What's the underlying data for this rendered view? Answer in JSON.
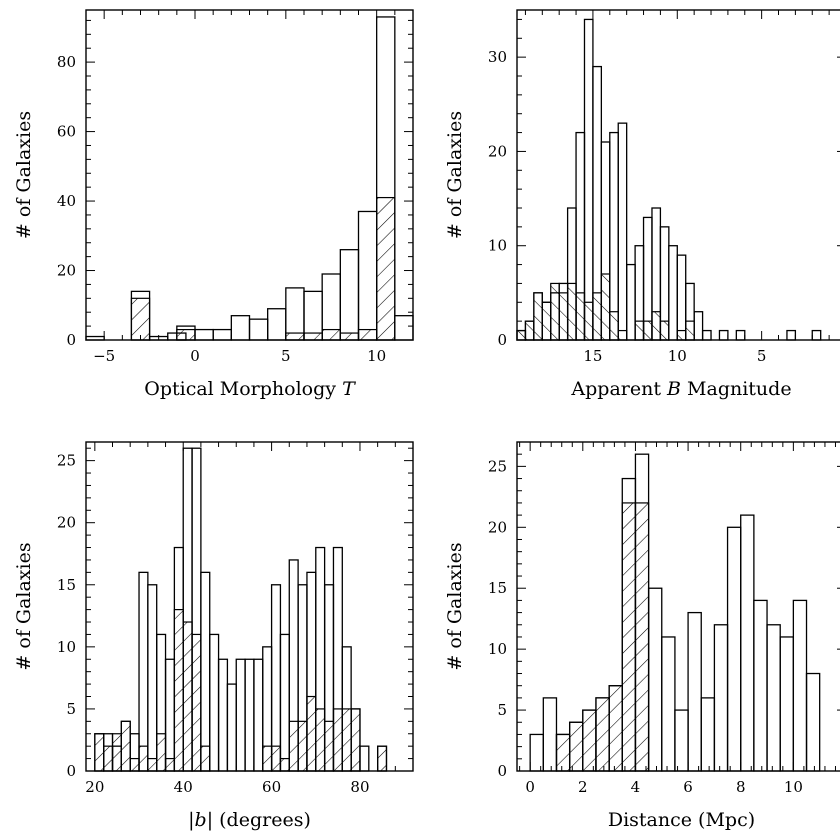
{
  "chart_data": [
    {
      "type": "histogram",
      "xlabel": "Optical Morphology T",
      "ylabel": "# of Galaxies",
      "xlim": [
        -6,
        12
      ],
      "ylim": [
        0,
        95
      ],
      "xticks": [
        -5,
        0,
        5,
        10
      ],
      "yticks": [
        0,
        20,
        40,
        60,
        80
      ],
      "bin_width": 1,
      "series": [
        {
          "style": "open",
          "bins": [
            [
              -6,
              1
            ],
            [
              -5,
              0
            ],
            [
              -4,
              0
            ],
            [
              -3.5,
              14
            ],
            [
              -2.5,
              1
            ],
            [
              -1.5,
              2
            ],
            [
              -1,
              4
            ],
            [
              0,
              3
            ],
            [
              1,
              3
            ],
            [
              2,
              7
            ],
            [
              3,
              6
            ],
            [
              4,
              9
            ],
            [
              5,
              15
            ],
            [
              6,
              14
            ],
            [
              7,
              19
            ],
            [
              8,
              26
            ],
            [
              9,
              37
            ],
            [
              10,
              93
            ],
            [
              11,
              7
            ]
          ]
        },
        {
          "style": "hatched",
          "bins": [
            [
              -3.5,
              12
            ],
            [
              -2.5,
              0
            ],
            [
              -1,
              3
            ],
            [
              0,
              0
            ],
            [
              5,
              2
            ],
            [
              6,
              2
            ],
            [
              7,
              3
            ],
            [
              8,
              2
            ],
            [
              9,
              3
            ],
            [
              10,
              41
            ],
            [
              11,
              0
            ]
          ]
        }
      ]
    },
    {
      "type": "histogram",
      "xlabel": "Apparent B Magnitude",
      "ylabel": "# of Galaxies",
      "xlim": [
        19.5,
        0
      ],
      "ylim": [
        0,
        35
      ],
      "xticks": [
        15,
        10,
        5
      ],
      "yticks": [
        0,
        10,
        20,
        30
      ],
      "bin_width": 0.5,
      "series": [
        {
          "style": "open",
          "bins": [
            [
              19,
              1
            ],
            [
              18.5,
              2
            ],
            [
              18,
              5
            ],
            [
              17.5,
              4
            ],
            [
              17,
              5
            ],
            [
              16.5,
              6
            ],
            [
              16,
              14
            ],
            [
              15.5,
              22
            ],
            [
              15,
              34
            ],
            [
              14.5,
              29
            ],
            [
              14,
              21
            ],
            [
              13.5,
              22
            ],
            [
              13,
              23
            ],
            [
              12.5,
              8
            ],
            [
              12,
              10
            ],
            [
              11.5,
              13
            ],
            [
              11,
              14
            ],
            [
              10.5,
              12
            ],
            [
              10,
              10
            ],
            [
              9.5,
              9
            ],
            [
              9,
              6
            ],
            [
              8.5,
              3
            ],
            [
              8,
              1
            ],
            [
              7.5,
              0
            ],
            [
              7,
              1
            ],
            [
              6.5,
              0
            ],
            [
              6,
              1
            ],
            [
              3,
              1
            ],
            [
              1.5,
              1
            ]
          ]
        },
        {
          "style": "hatched",
          "bins": [
            [
              19,
              1
            ],
            [
              18.5,
              2
            ],
            [
              18,
              5
            ],
            [
              17.5,
              4
            ],
            [
              17,
              6
            ],
            [
              16.5,
              5
            ],
            [
              16,
              6
            ],
            [
              15.5,
              5
            ],
            [
              15,
              4
            ],
            [
              14.5,
              5
            ],
            [
              14,
              7
            ],
            [
              13.5,
              3
            ],
            [
              13,
              1
            ],
            [
              12,
              2
            ],
            [
              11.5,
              2
            ],
            [
              11,
              3
            ],
            [
              10.5,
              2
            ],
            [
              10,
              0
            ],
            [
              9.5,
              1
            ],
            [
              9,
              2
            ],
            [
              8.5,
              0
            ]
          ]
        }
      ]
    },
    {
      "type": "histogram",
      "xlabel": "|b| (degrees)",
      "ylabel": "# of Galaxies",
      "xlim": [
        18,
        92
      ],
      "ylim": [
        0,
        26.5
      ],
      "xticks": [
        20,
        40,
        60,
        80
      ],
      "yticks": [
        0,
        5,
        10,
        15,
        20,
        25
      ],
      "bin_width": 2,
      "series": [
        {
          "style": "open",
          "bins": [
            [
              20,
              3
            ],
            [
              22,
              3
            ],
            [
              24,
              2
            ],
            [
              26,
              4
            ],
            [
              28,
              3
            ],
            [
              30,
              16
            ],
            [
              32,
              15
            ],
            [
              34,
              11
            ],
            [
              36,
              9
            ],
            [
              38,
              18
            ],
            [
              40,
              26
            ],
            [
              42,
              26
            ],
            [
              44,
              16
            ],
            [
              46,
              11
            ],
            [
              48,
              9
            ],
            [
              50,
              7
            ],
            [
              52,
              9
            ],
            [
              54,
              9
            ],
            [
              56,
              9
            ],
            [
              58,
              10
            ],
            [
              60,
              15
            ],
            [
              62,
              11
            ],
            [
              64,
              17
            ],
            [
              66,
              15
            ],
            [
              68,
              16
            ],
            [
              70,
              18
            ],
            [
              72,
              15
            ],
            [
              74,
              18
            ],
            [
              76,
              10
            ],
            [
              78,
              5
            ],
            [
              80,
              2
            ],
            [
              82,
              0
            ],
            [
              84,
              2
            ],
            [
              86,
              0
            ]
          ]
        },
        {
          "style": "hatched",
          "bins": [
            [
              20,
              3
            ],
            [
              22,
              2
            ],
            [
              24,
              3
            ],
            [
              26,
              4
            ],
            [
              28,
              1
            ],
            [
              30,
              2
            ],
            [
              32,
              1
            ],
            [
              34,
              3
            ],
            [
              36,
              1
            ],
            [
              38,
              13
            ],
            [
              40,
              12
            ],
            [
              42,
              11
            ],
            [
              44,
              2
            ],
            [
              46,
              0
            ],
            [
              58,
              2
            ],
            [
              60,
              2
            ],
            [
              62,
              1
            ],
            [
              64,
              4
            ],
            [
              66,
              4
            ],
            [
              68,
              6
            ],
            [
              70,
              5
            ],
            [
              72,
              4
            ],
            [
              74,
              5
            ],
            [
              76,
              5
            ],
            [
              78,
              5
            ],
            [
              80,
              0
            ],
            [
              84,
              2
            ],
            [
              86,
              0
            ]
          ]
        }
      ]
    },
    {
      "type": "histogram",
      "xlabel": "Distance (Mpc)",
      "ylabel": "# of Galaxies",
      "xlim": [
        -0.5,
        12
      ],
      "ylim": [
        0,
        27
      ],
      "xticks": [
        0,
        2,
        4,
        6,
        8,
        10
      ],
      "yticks": [
        0,
        5,
        10,
        15,
        20,
        25
      ],
      "bin_width": 0.5,
      "series": [
        {
          "style": "open",
          "bins": [
            [
              0,
              3
            ],
            [
              0.5,
              6
            ],
            [
              1,
              3
            ],
            [
              1.5,
              4
            ],
            [
              2,
              5
            ],
            [
              2.5,
              6
            ],
            [
              3,
              7
            ],
            [
              3.5,
              24
            ],
            [
              4,
              26
            ],
            [
              4.5,
              15
            ],
            [
              5,
              11
            ],
            [
              5.5,
              5
            ],
            [
              6,
              13
            ],
            [
              6.5,
              6
            ],
            [
              7,
              12
            ],
            [
              7.5,
              20
            ],
            [
              8,
              21
            ],
            [
              8.5,
              14
            ],
            [
              9,
              12
            ],
            [
              9.5,
              11
            ],
            [
              10,
              14
            ],
            [
              10.5,
              8
            ],
            [
              11,
              0
            ]
          ]
        },
        {
          "style": "hatched",
          "bins": [
            [
              1,
              3
            ],
            [
              1.5,
              4
            ],
            [
              2,
              5
            ],
            [
              2.5,
              6
            ],
            [
              3,
              7
            ],
            [
              3.5,
              22
            ],
            [
              4,
              22
            ],
            [
              4.5,
              0
            ]
          ]
        }
      ]
    }
  ]
}
